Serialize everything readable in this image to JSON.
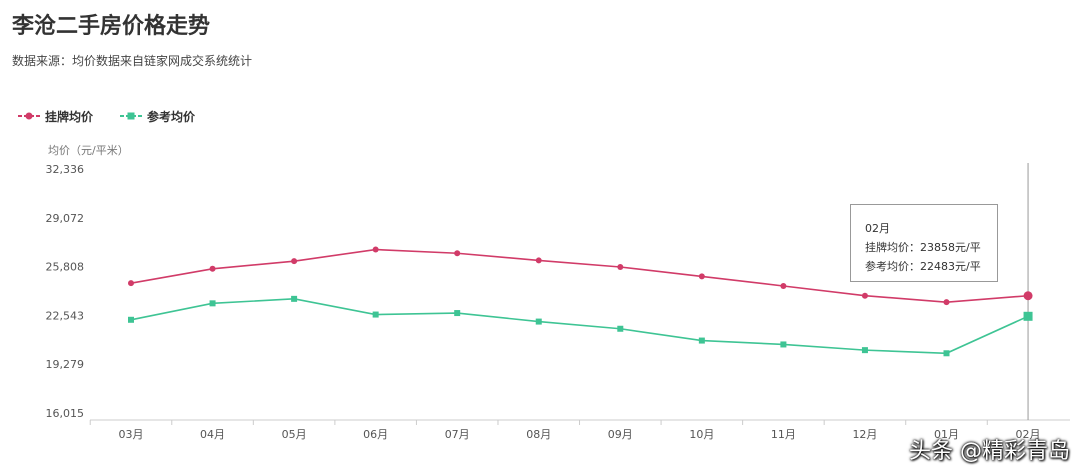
{
  "title": "李沧二手房价格走势",
  "subtitle": "数据来源：均价数据来自链家网成交系统统计",
  "watermark": "头条 @精彩青岛",
  "tooltip": {
    "month": "02月",
    "listing": "挂牌均价：23858元/平",
    "reference": "参考均价：22483元/平"
  },
  "colors": {
    "listing": "#d13b68",
    "reference": "#3ec494"
  },
  "chart_data": {
    "type": "line",
    "ylabel": "均价（元/平米）",
    "ylim": [
      16015,
      32336
    ],
    "yticks": [
      "32,336",
      "29,072",
      "25,808",
      "22,543",
      "19,279",
      "16,015"
    ],
    "categories": [
      "03月",
      "04月",
      "05月",
      "06月",
      "07月",
      "08月",
      "09月",
      "10月",
      "11月",
      "12月",
      "01月",
      "02月"
    ],
    "legend_position": "top-left",
    "series": [
      {
        "name": "挂牌均价",
        "marker": "circle",
        "values": [
          24700,
          25660,
          26170,
          26950,
          26700,
          26220,
          25780,
          25150,
          24510,
          23860,
          23430,
          23858
        ]
      },
      {
        "name": "参考均价",
        "marker": "square",
        "values": [
          22250,
          23350,
          23650,
          22600,
          22700,
          22130,
          21650,
          20860,
          20600,
          20220,
          20010,
          22483
        ]
      }
    ]
  }
}
